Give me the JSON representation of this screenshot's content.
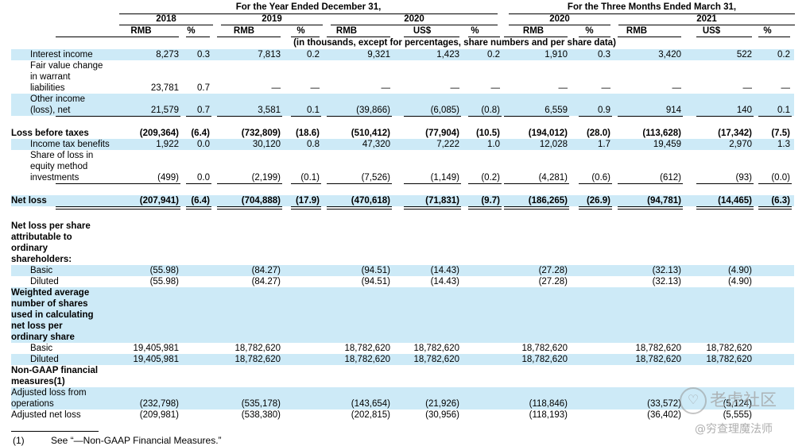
{
  "header": {
    "year_group": "For the Year Ended December 31,",
    "quarter_group": "For the Three Months Ended March 31,",
    "years": [
      "2018",
      "2019",
      "2020",
      "2020",
      "2021"
    ],
    "columns": [
      "RMB",
      "%",
      "RMB",
      "%",
      "RMB",
      "US$",
      "%",
      "RMB",
      "%",
      "RMB",
      "US$",
      "%"
    ],
    "units_note": "(in thousands, except for percentages, share numbers and per share data)"
  },
  "rows": [
    {
      "label": "Interest income",
      "values": [
        "8,273",
        "0.3",
        "7,813",
        "0.2",
        "9,321",
        "1,423",
        "0.2",
        "1,910",
        "0.3",
        "3,420",
        "522",
        "0.2"
      ]
    },
    {
      "label": "Fair value change\nin warrant\nliabilities",
      "values": [
        "23,781",
        "0.7",
        "—",
        "—",
        "—",
        "—",
        "—",
        "—",
        "—",
        "—",
        "—",
        "—"
      ]
    },
    {
      "label": "Other income\n(loss), net",
      "values": [
        "21,579",
        "0.7",
        "3,581",
        "0.1",
        "(39,866)",
        "(6,085)",
        "(0.8)",
        "6,559",
        "0.9",
        "914",
        "140",
        "0.1"
      ]
    },
    {
      "label": "Loss before taxes",
      "values": [
        "(209,364)",
        "(6.4)",
        "(732,809)",
        "(18.6)",
        "(510,412)",
        "(77,904)",
        "(10.5)",
        "(194,012)",
        "(28.0)",
        "(113,628)",
        "(17,342)",
        "(7.5)"
      ]
    },
    {
      "label": "Income tax benefits",
      "values": [
        "1,922",
        "0.0",
        "30,120",
        "0.8",
        "47,320",
        "7,222",
        "1.0",
        "12,028",
        "1.7",
        "19,459",
        "2,970",
        "1.3"
      ]
    },
    {
      "label": "Share of loss in\nequity method\ninvestments",
      "values": [
        "(499)",
        "0.0",
        "(2,199)",
        "(0.1)",
        "(7,526)",
        "(1,149)",
        "(0.2)",
        "(4,281)",
        "(0.6)",
        "(612)",
        "(93)",
        "(0.0)"
      ]
    },
    {
      "label": "Net loss",
      "values": [
        "(207,941)",
        "(6.4)",
        "(704,888)",
        "(17.9)",
        "(470,618)",
        "(71,831)",
        "(9.7)",
        "(186,265)",
        "(26.9)",
        "(94,781)",
        "(14,465)",
        "(6.3)"
      ]
    },
    {
      "label": "Net loss per share\nattributable to\nordinary\nshareholders:",
      "values": []
    },
    {
      "label": "Basic",
      "values": [
        "(55.98)",
        "",
        "(84.27)",
        "",
        "(94.51)",
        "(14.43)",
        "",
        "(27.28)",
        "",
        "(32.13)",
        "(4.90)",
        ""
      ]
    },
    {
      "label": "Diluted",
      "values": [
        "(55.98)",
        "",
        "(84.27)",
        "",
        "(94.51)",
        "(14.43)",
        "",
        "(27.28)",
        "",
        "(32.13)",
        "(4.90)",
        ""
      ]
    },
    {
      "label": "Weighted average\nnumber of shares\nused in calculating\nnet loss per\nordinary share",
      "values": []
    },
    {
      "label": "Basic",
      "values": [
        "19,405,981",
        "",
        "18,782,620",
        "",
        "18,782,620",
        "18,782,620",
        "",
        "18,782,620",
        "",
        "18,782,620",
        "18,782,620",
        ""
      ]
    },
    {
      "label": "Diluted",
      "values": [
        "19,405,981",
        "",
        "18,782,620",
        "",
        "18,782,620",
        "18,782,620",
        "",
        "18,782,620",
        "",
        "18,782,620",
        "18,782,620",
        ""
      ]
    },
    {
      "label": "Non-GAAP financial\nmeasures(1)",
      "values": []
    },
    {
      "label": "Adjusted loss from\noperations",
      "values": [
        "(232,798)",
        "",
        "(535,178)",
        "",
        "(143,654)",
        "(21,926)",
        "",
        "(118,846)",
        "",
        "(33,572)",
        "(5,124)",
        ""
      ]
    },
    {
      "label": "Adjusted net loss",
      "values": [
        "(209,981)",
        "",
        "(538,380)",
        "",
        "(202,815)",
        "(30,956)",
        "",
        "(118,193)",
        "",
        "(36,402)",
        "(5,555)",
        ""
      ]
    }
  ],
  "footnote": {
    "mark": "(1)",
    "text": "See “—Non-GAAP Financial Measures.”"
  },
  "watermark": {
    "icon": "tiger-icon",
    "brand": "老虎社区",
    "author": "@穷查理魔法师"
  },
  "colors": {
    "band": "#cdeaf7",
    "text": "#000000"
  }
}
